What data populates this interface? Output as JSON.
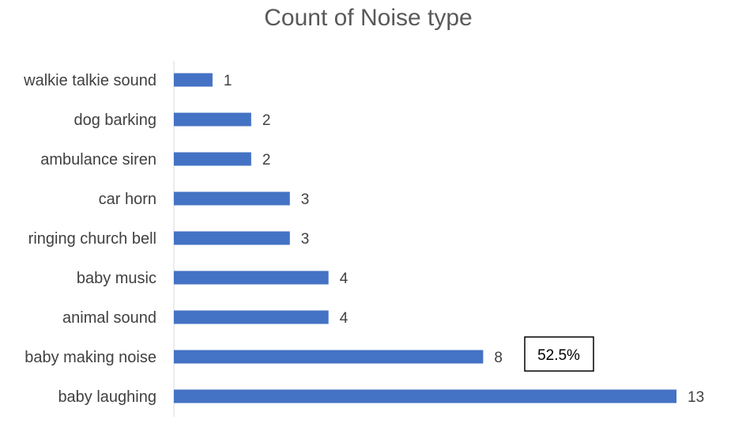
{
  "chart_data": {
    "type": "bar",
    "orientation": "horizontal",
    "title": "Count of Noise type",
    "categories": [
      "walkie talkie sound",
      "dog barking",
      "ambulance siren",
      "car horn",
      "ringing church bell",
      "baby music",
      "animal sound",
      "baby making noise",
      "baby laughing"
    ],
    "values": [
      1,
      2,
      2,
      3,
      3,
      4,
      4,
      8,
      13
    ],
    "data_labels": [
      "1",
      "2",
      "2",
      "3",
      "3",
      "4",
      "4",
      "8",
      "13"
    ],
    "xlim": [
      0,
      13
    ],
    "grid": false,
    "legend": "none",
    "bar_color": "#4472C4",
    "annotation": "52.5%"
  }
}
